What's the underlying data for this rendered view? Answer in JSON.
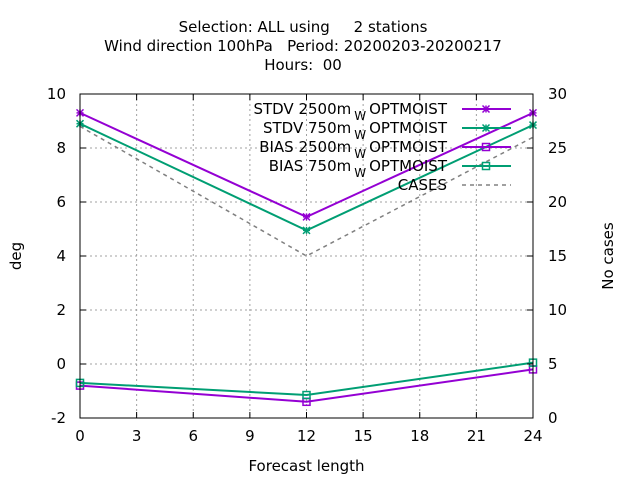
{
  "chart_data": {
    "type": "line",
    "title_lines": [
      "Selection: ALL using     2 stations",
      "Wind direction 100hPa   Period: 20200203-20200217",
      "Hours:  00"
    ],
    "xlabel": "Forecast length",
    "ylabel": "deg",
    "y2label": "No cases",
    "xlim": [
      0,
      24
    ],
    "ylim": [
      -2,
      10
    ],
    "y2lim": [
      0,
      30
    ],
    "xticks": [
      "0",
      "3",
      "6",
      "9",
      "12",
      "15",
      "18",
      "21",
      "24"
    ],
    "yticks": [
      "-2",
      "0",
      "2",
      "4",
      "6",
      "8",
      "10"
    ],
    "y2ticks": [
      "0",
      "5",
      "10",
      "15",
      "20",
      "25",
      "30"
    ],
    "grid": true,
    "legend_position": "top-right",
    "series": [
      {
        "name": "STDV 2500m",
        "name_sub": "W",
        "name_suffix": "OPTMOIST",
        "color": "#9400d3",
        "marker": "cross",
        "axis": "y",
        "x": [
          0,
          12,
          24
        ],
        "values": [
          9.3,
          5.45,
          9.3
        ]
      },
      {
        "name": "STDV 750m",
        "name_sub": "W",
        "name_suffix": "OPTMOIST",
        "color": "#009e73",
        "marker": "cross",
        "axis": "y",
        "x": [
          0,
          12,
          24
        ],
        "values": [
          8.9,
          4.95,
          8.85
        ]
      },
      {
        "name": "BIAS 2500m",
        "name_sub": "W",
        "name_suffix": "OPTMOIST",
        "color": "#9400d3",
        "marker": "square",
        "axis": "y",
        "x": [
          0,
          12,
          24
        ],
        "values": [
          -0.8,
          -1.4,
          -0.2
        ]
      },
      {
        "name": "BIAS 750m",
        "name_sub": "W",
        "name_suffix": "OPTMOIST",
        "color": "#009e73",
        "marker": "square",
        "axis": "y",
        "x": [
          0,
          12,
          24
        ],
        "values": [
          -0.7,
          -1.15,
          0.05
        ]
      },
      {
        "name": "CASES",
        "color": "#808080",
        "marker": "none",
        "dashed": true,
        "axis": "y2",
        "x": [
          0,
          12,
          24
        ],
        "values": [
          27,
          15,
          26
        ]
      }
    ]
  }
}
